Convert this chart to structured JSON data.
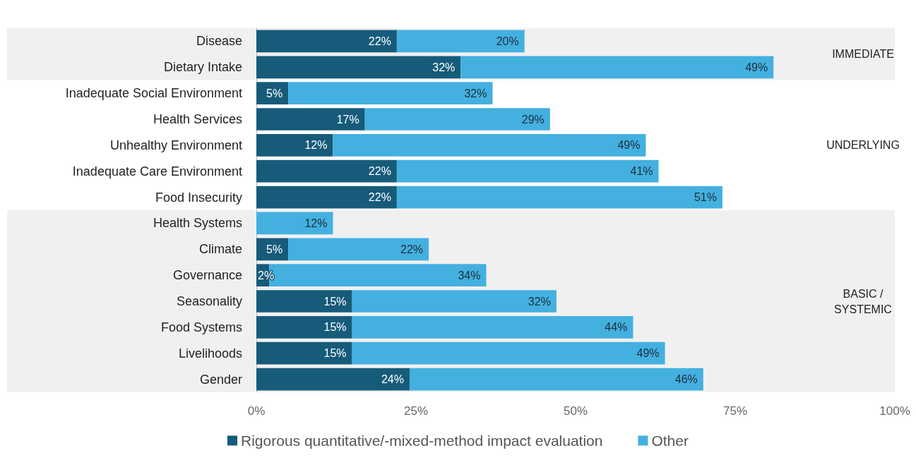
{
  "chart_data": {
    "type": "bar",
    "orientation": "horizontal",
    "stacked": true,
    "categories": [
      "Disease",
      "Dietary Intake",
      "Inadequate Social Environment",
      "Health Services",
      "Unhealthy Environment",
      "Inadequate Care Environment",
      "Food Insecurity",
      "Health Systems",
      "Climate",
      "Governance",
      "Seasonality",
      "Food Systems",
      "Livelihoods",
      "Gender"
    ],
    "series": [
      {
        "name": "Rigorous quantitative/-mixed-method impact evaluation",
        "color": "#175b7a",
        "values": [
          22,
          32,
          5,
          17,
          12,
          22,
          22,
          null,
          5,
          2,
          15,
          15,
          15,
          24
        ],
        "value_labels": [
          "22%",
          "32%",
          "5%",
          "17%",
          "12%",
          "22%",
          "22%",
          null,
          "5%",
          "2%",
          "15%",
          "15%",
          "15%",
          "24%"
        ]
      },
      {
        "name": "Other",
        "color": "#43b0e0",
        "values": [
          20,
          49,
          32,
          29,
          49,
          41,
          51,
          12,
          22,
          34,
          32,
          44,
          49,
          46
        ],
        "value_labels": [
          "20%",
          "49%",
          "32%",
          "29%",
          "49%",
          "41%",
          "51%",
          "12%",
          "22%",
          "34%",
          "32%",
          "44%",
          "49%",
          "46%"
        ]
      }
    ],
    "xlim": [
      0,
      100
    ],
    "xticks": [
      {
        "value": 0,
        "label": "0%"
      },
      {
        "value": 25,
        "label": "25%"
      },
      {
        "value": 50,
        "label": "50%"
      },
      {
        "value": 75,
        "label": "75%"
      },
      {
        "value": 100,
        "label": "100%"
      }
    ],
    "bands": [
      {
        "axis": "y",
        "from": "Disease",
        "to": "Dietary Intake",
        "label": "IMMEDIATE",
        "color": "#f0f0f0"
      },
      {
        "axis": "y",
        "from": "Health Systems",
        "to": "Gender",
        "label": "BASIC /\nSYSTEMIC",
        "color": "#f0f0f0"
      }
    ],
    "annotations": [
      "UNDERLYING"
    ],
    "grid": false,
    "legend": "bottom"
  }
}
